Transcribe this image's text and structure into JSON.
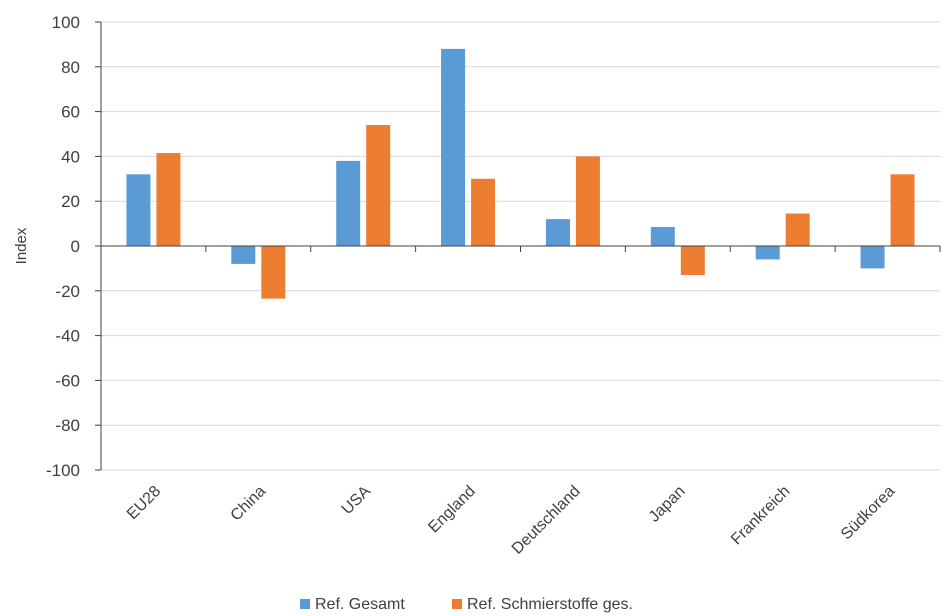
{
  "chart_data": {
    "type": "bar",
    "title": "",
    "xlabel": "",
    "ylabel": "Index",
    "ylim": [
      -100,
      100
    ],
    "yticks": [
      -100,
      -80,
      -60,
      -40,
      -20,
      0,
      20,
      40,
      60,
      80,
      100
    ],
    "grid": true,
    "legend_position": "bottom",
    "categories": [
      "EU28",
      "China",
      "USA",
      "England",
      "Deutschland",
      "Japan",
      "Frankreich",
      "Südkorea"
    ],
    "series": [
      {
        "name": "Ref. Gesamt",
        "color": "#5B9BD5",
        "values": [
          32,
          -8,
          38,
          88,
          12,
          8.5,
          -6,
          -10
        ]
      },
      {
        "name": "Ref. Schmierstoffe ges.",
        "color": "#ED7D31",
        "values": [
          41.5,
          -23.5,
          54,
          30,
          40,
          -13,
          14.5,
          32
        ]
      }
    ]
  }
}
